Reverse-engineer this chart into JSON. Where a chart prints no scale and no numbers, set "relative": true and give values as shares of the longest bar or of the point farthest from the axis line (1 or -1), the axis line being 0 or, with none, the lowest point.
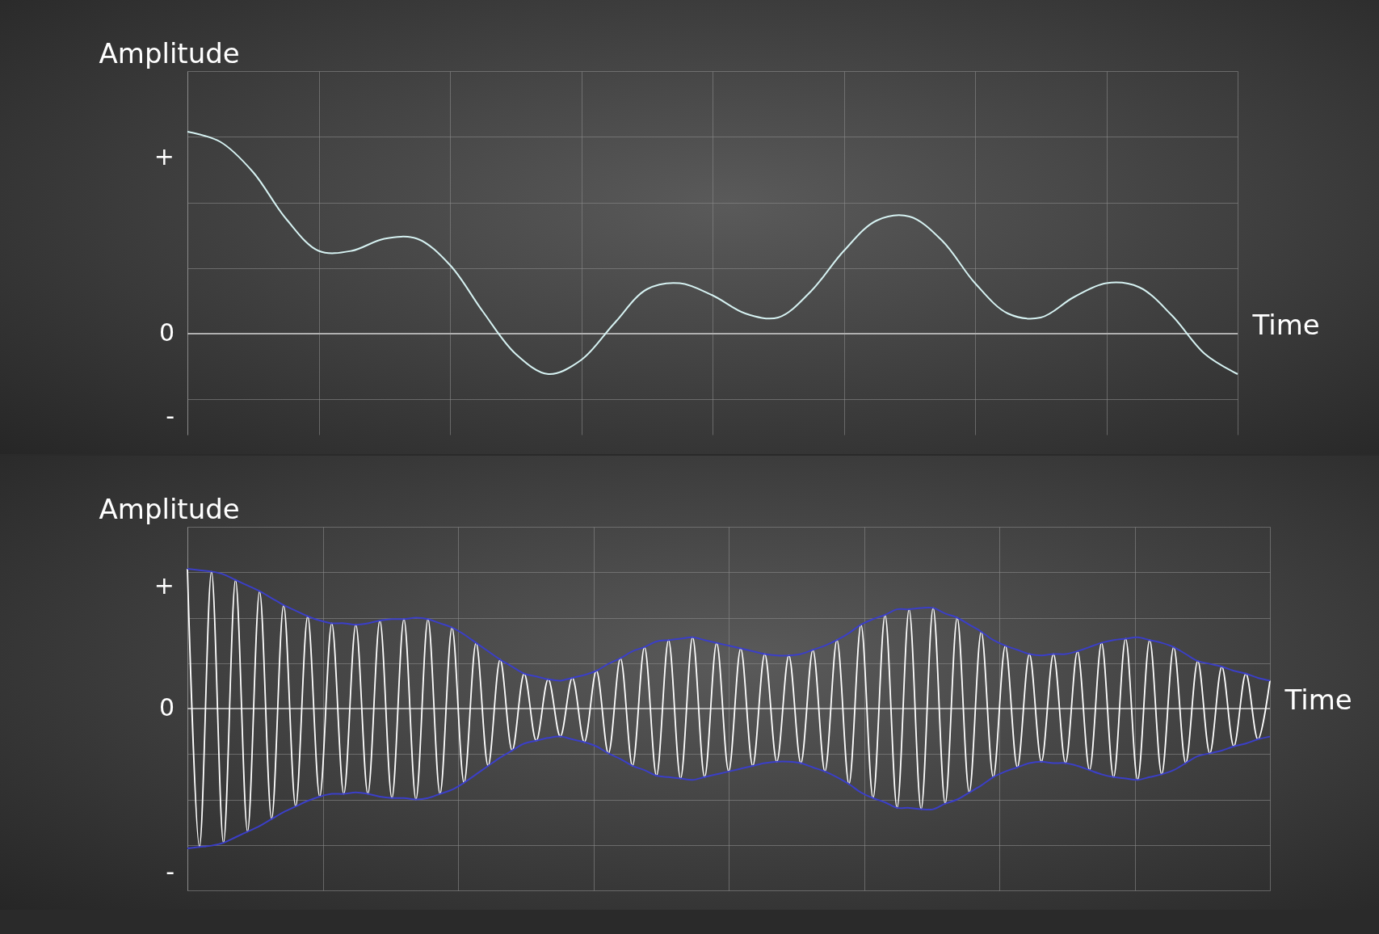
{
  "chart_data": [
    {
      "type": "line",
      "relative": true,
      "ylabel": "Amplitude",
      "xlabel": "Time",
      "grid": true,
      "marker": "none",
      "line_style": "solid",
      "annotations": [
        "+",
        "0",
        "-"
      ],
      "categories": [
        null,
        null,
        null,
        null,
        null,
        null,
        null,
        null,
        null,
        null,
        null,
        null,
        null,
        null,
        null,
        null,
        null,
        null,
        null,
        null,
        null,
        null,
        null,
        null,
        null,
        null,
        null,
        null,
        null,
        null,
        null,
        null,
        null
      ],
      "series": [
        {
          "color": "#d6f2f2",
          "values": [
            1.0,
            0.95,
            0.8,
            0.57,
            0.41,
            0.41,
            0.47,
            0.47,
            0.34,
            0.11,
            -0.1,
            -0.2,
            -0.13,
            0.05,
            0.22,
            0.25,
            0.19,
            0.1,
            0.08,
            0.21,
            0.41,
            0.56,
            0.58,
            0.46,
            0.25,
            0.1,
            0.08,
            0.18,
            0.25,
            0.23,
            0.09,
            -0.1,
            -0.2
          ]
        }
      ]
    },
    {
      "type": "line",
      "relative": true,
      "ylabel": "Amplitude",
      "xlabel": "Time",
      "grid": true,
      "marker": "none",
      "line_style": "solid",
      "annotations": [
        "+",
        "0",
        "-"
      ],
      "categories": [
        null,
        null,
        null,
        null,
        null,
        null,
        null,
        null,
        null,
        null,
        null,
        null,
        null,
        null,
        null,
        null,
        null,
        null,
        null,
        null,
        null,
        null,
        null,
        null,
        null,
        null,
        null,
        null,
        null,
        null,
        null,
        null,
        null,
        null,
        null,
        null,
        null,
        null,
        null,
        null,
        null,
        null,
        null,
        null,
        null,
        null,
        null,
        null,
        null,
        null,
        null,
        null,
        null,
        null,
        null,
        null,
        null,
        null,
        null,
        null,
        null,
        null,
        null,
        null,
        null,
        null,
        null,
        null,
        null,
        null,
        null,
        null,
        null,
        null,
        null,
        null,
        null,
        null,
        null,
        null,
        null,
        null,
        null,
        null,
        null,
        null,
        null,
        null,
        null,
        null,
        null
      ],
      "series": [
        {
          "color": "#ffffff",
          "values": [
            1.0,
            -0.99,
            0.98,
            -0.96,
            0.92,
            -0.88,
            0.84,
            -0.79,
            0.74,
            -0.7,
            0.66,
            -0.63,
            0.61,
            -0.61,
            0.6,
            -0.61,
            0.63,
            -0.64,
            0.64,
            -0.65,
            0.64,
            -0.61,
            0.58,
            -0.53,
            0.47,
            -0.41,
            0.35,
            -0.3,
            0.25,
            -0.23,
            0.21,
            -0.2,
            0.22,
            -0.24,
            0.27,
            -0.32,
            0.36,
            -0.41,
            0.44,
            -0.48,
            0.49,
            -0.5,
            0.51,
            -0.49,
            0.47,
            -0.45,
            0.43,
            -0.41,
            0.39,
            -0.38,
            0.38,
            -0.39,
            0.42,
            -0.45,
            0.49,
            -0.54,
            0.6,
            -0.64,
            0.67,
            -0.71,
            0.71,
            -0.72,
            0.72,
            -0.68,
            0.65,
            -0.6,
            0.55,
            -0.49,
            0.45,
            -0.42,
            0.39,
            -0.38,
            0.39,
            -0.39,
            0.41,
            -0.44,
            0.47,
            -0.49,
            0.5,
            -0.51,
            0.49,
            -0.47,
            0.44,
            -0.39,
            0.34,
            -0.32,
            0.3,
            -0.27,
            0.25,
            -0.22,
            0.2
          ]
        },
        {
          "color": "#3b3fc8",
          "values": [
            1.0,
            0.99,
            0.98,
            0.96,
            0.92,
            0.88,
            0.84,
            0.79,
            0.74,
            0.7,
            0.66,
            0.63,
            0.61,
            0.61,
            0.6,
            0.61,
            0.63,
            0.64,
            0.64,
            0.65,
            0.64,
            0.61,
            0.58,
            0.53,
            0.47,
            0.41,
            0.35,
            0.3,
            0.25,
            0.23,
            0.21,
            0.2,
            0.22,
            0.24,
            0.27,
            0.32,
            0.36,
            0.41,
            0.44,
            0.48,
            0.49,
            0.5,
            0.51,
            0.49,
            0.47,
            0.45,
            0.43,
            0.41,
            0.39,
            0.38,
            0.38,
            0.39,
            0.42,
            0.45,
            0.49,
            0.54,
            0.6,
            0.64,
            0.67,
            0.71,
            0.71,
            0.72,
            0.72,
            0.68,
            0.65,
            0.6,
            0.55,
            0.49,
            0.45,
            0.42,
            0.39,
            0.38,
            0.39,
            0.39,
            0.41,
            0.44,
            0.47,
            0.49,
            0.5,
            0.51,
            0.49,
            0.47,
            0.44,
            0.39,
            0.34,
            0.32,
            0.3,
            0.27,
            0.25,
            0.22,
            0.2
          ]
        },
        {
          "color": "#3b3fc8",
          "values": [
            -1.0,
            -0.99,
            -0.98,
            -0.96,
            -0.92,
            -0.88,
            -0.84,
            -0.79,
            -0.74,
            -0.7,
            -0.66,
            -0.63,
            -0.61,
            -0.61,
            -0.6,
            -0.61,
            -0.63,
            -0.64,
            -0.64,
            -0.65,
            -0.64,
            -0.61,
            -0.58,
            -0.53,
            -0.47,
            -0.41,
            -0.35,
            -0.3,
            -0.25,
            -0.23,
            -0.21,
            -0.2,
            -0.22,
            -0.24,
            -0.27,
            -0.32,
            -0.36,
            -0.41,
            -0.44,
            -0.48,
            -0.49,
            -0.5,
            -0.51,
            -0.49,
            -0.47,
            -0.45,
            -0.43,
            -0.41,
            -0.39,
            -0.38,
            -0.38,
            -0.39,
            -0.42,
            -0.45,
            -0.49,
            -0.54,
            -0.6,
            -0.64,
            -0.67,
            -0.71,
            -0.71,
            -0.72,
            -0.72,
            -0.68,
            -0.65,
            -0.6,
            -0.55,
            -0.49,
            -0.45,
            -0.42,
            -0.39,
            -0.38,
            -0.39,
            -0.39,
            -0.41,
            -0.44,
            -0.47,
            -0.49,
            -0.5,
            -0.51,
            -0.49,
            -0.47,
            -0.44,
            -0.39,
            -0.34,
            -0.32,
            -0.3,
            -0.27,
            -0.25,
            -0.22,
            -0.2
          ]
        }
      ]
    }
  ]
}
